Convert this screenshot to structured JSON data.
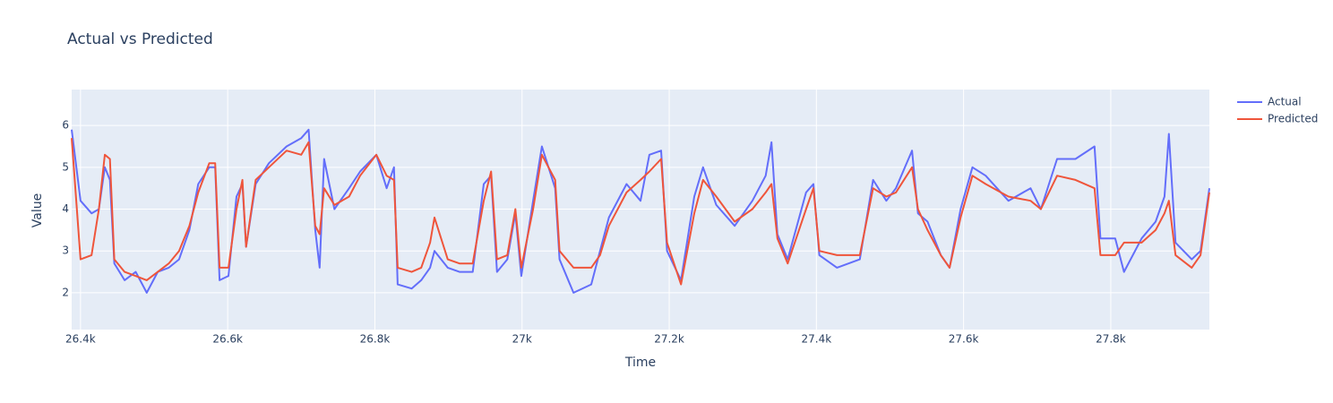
{
  "chart_data": {
    "type": "line",
    "title": "Actual vs Predicted",
    "x_label": "Time",
    "y_label": "Value",
    "xlim": [
      26388,
      27934
    ],
    "ylim": [
      1.12,
      6.86
    ],
    "xticks": [
      {
        "value": 26400,
        "label": "26.4k"
      },
      {
        "value": 26600,
        "label": "26.6k"
      },
      {
        "value": 26800,
        "label": "26.8k"
      },
      {
        "value": 27000,
        "label": "27k"
      },
      {
        "value": 27200,
        "label": "27.2k"
      },
      {
        "value": 27400,
        "label": "27.4k"
      },
      {
        "value": 27600,
        "label": "27.6k"
      },
      {
        "value": 27800,
        "label": "27.8k"
      }
    ],
    "yticks": [
      2,
      3,
      4,
      5,
      6
    ],
    "grid": true,
    "legend": "right",
    "x": [
      26388,
      26400,
      26415,
      26425,
      26433,
      26440,
      26446,
      26460,
      26475,
      26490,
      26505,
      26520,
      26534,
      26548,
      26560,
      26575,
      26583,
      26589,
      26601,
      26612,
      26620,
      26625,
      26638,
      26656,
      26680,
      26700,
      26710,
      26719,
      26725,
      26731,
      26745,
      26765,
      26780,
      26802,
      26816,
      26826,
      26831,
      26850,
      26863,
      26875,
      26881,
      26899,
      26915,
      26933,
      26948,
      26958,
      26966,
      26980,
      26991,
      26999,
      27015,
      27027,
      27045,
      27051,
      27070,
      27094,
      27106,
      27118,
      27142,
      27161,
      27173,
      27189,
      27197,
      27216,
      27234,
      27246,
      27264,
      27289,
      27313,
      27331,
      27339,
      27347,
      27361,
      27386,
      27396,
      27404,
      27428,
      27459,
      27477,
      27495,
      27508,
      27530,
      27538,
      27551,
      27569,
      27581,
      27596,
      27612,
      27630,
      27661,
      27691,
      27705,
      27727,
      27752,
      27778,
      27786,
      27806,
      27818,
      27842,
      27861,
      27873,
      27879,
      27888,
      27910,
      27922,
      27934
    ],
    "series": [
      {
        "name": "Actual",
        "color": "#636efa",
        "values": [
          5.9,
          4.2,
          3.9,
          4.0,
          5.0,
          4.7,
          2.7,
          2.3,
          2.5,
          2.0,
          2.5,
          2.6,
          2.8,
          3.5,
          4.6,
          5.0,
          5.0,
          2.3,
          2.4,
          4.3,
          4.6,
          3.1,
          4.6,
          5.1,
          5.5,
          5.7,
          5.9,
          3.5,
          2.6,
          5.2,
          4.0,
          4.5,
          4.9,
          5.3,
          4.5,
          5.0,
          2.2,
          2.1,
          2.3,
          2.6,
          3.0,
          2.6,
          2.5,
          2.5,
          4.6,
          4.8,
          2.5,
          2.8,
          3.9,
          2.4,
          4.2,
          5.5,
          4.5,
          2.8,
          2.0,
          2.2,
          3.0,
          3.8,
          4.6,
          4.2,
          5.3,
          5.4,
          3.0,
          2.3,
          4.3,
          5.0,
          4.1,
          3.6,
          4.2,
          4.8,
          5.6,
          3.4,
          2.8,
          4.4,
          4.6,
          2.9,
          2.6,
          2.8,
          4.7,
          4.2,
          4.5,
          5.4,
          3.9,
          3.7,
          2.9,
          2.6,
          4.0,
          5.0,
          4.8,
          4.2,
          4.5,
          4.0,
          5.2,
          5.2,
          5.5,
          3.3,
          3.3,
          2.5,
          3.3,
          3.7,
          4.3,
          5.8,
          3.2,
          2.8,
          3.0,
          4.5
        ]
      },
      {
        "name": "Predicted",
        "color": "#ef553b",
        "values": [
          5.7,
          2.8,
          2.9,
          4.0,
          5.3,
          5.2,
          2.8,
          2.5,
          2.4,
          2.3,
          2.5,
          2.7,
          3.0,
          3.6,
          4.4,
          5.1,
          5.1,
          2.6,
          2.6,
          4.0,
          4.7,
          3.1,
          4.7,
          5.0,
          5.4,
          5.3,
          5.6,
          3.6,
          3.4,
          4.5,
          4.1,
          4.3,
          4.8,
          5.3,
          4.8,
          4.7,
          2.6,
          2.5,
          2.6,
          3.2,
          3.8,
          2.8,
          2.7,
          2.7,
          4.2,
          4.9,
          2.8,
          2.9,
          4.0,
          2.6,
          4.0,
          5.3,
          4.7,
          3.0,
          2.6,
          2.6,
          2.9,
          3.6,
          4.4,
          4.7,
          4.9,
          5.2,
          3.2,
          2.2,
          3.9,
          4.7,
          4.3,
          3.7,
          4.0,
          4.4,
          4.6,
          3.3,
          2.7,
          4.0,
          4.5,
          3.0,
          2.9,
          2.9,
          4.5,
          4.3,
          4.4,
          5.0,
          4.0,
          3.5,
          2.9,
          2.6,
          3.8,
          4.8,
          4.6,
          4.3,
          4.2,
          4.0,
          4.8,
          4.7,
          4.5,
          2.9,
          2.9,
          3.2,
          3.2,
          3.5,
          3.9,
          4.2,
          2.9,
          2.6,
          2.9,
          4.4
        ]
      }
    ]
  }
}
